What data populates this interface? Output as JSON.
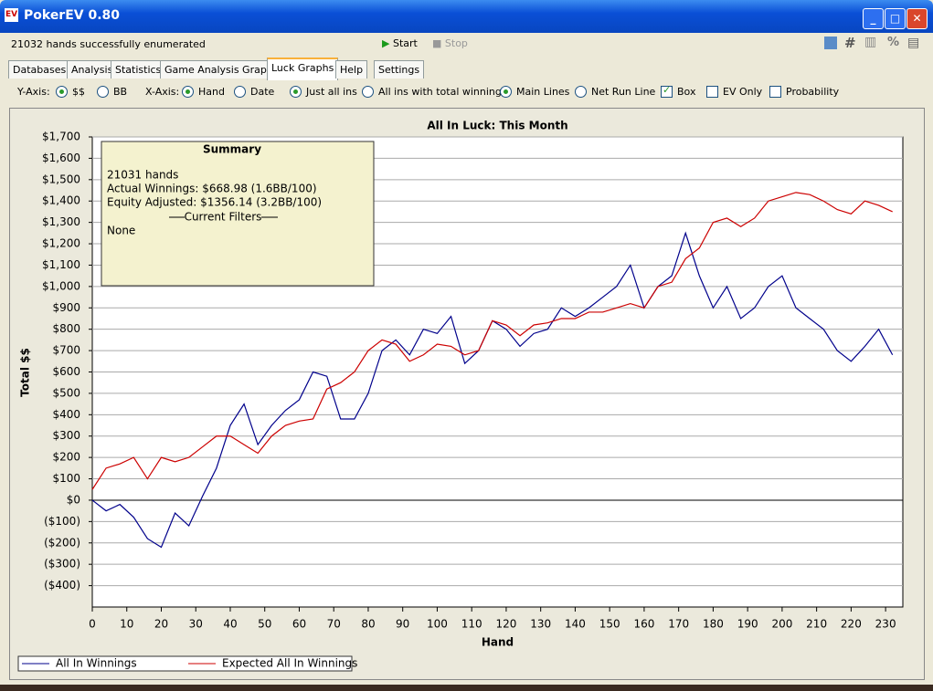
{
  "window": {
    "title": "PokerEV 0.80",
    "status": "21032 hands successfully enumerated",
    "start": "Start",
    "stop": "Stop",
    "icon": "EV",
    "percent": "%"
  },
  "tabs": [
    "Databases",
    "Analysis",
    "Statistics",
    "Game Analysis Graphs",
    "Luck Graphs",
    "Help",
    "Settings"
  ],
  "active_tab": 4,
  "options": [
    {
      "text": "Y-Axis:",
      "kind": "label"
    },
    {
      "text": "$$",
      "kind": "radio",
      "checked": true
    },
    {
      "text": "BB",
      "kind": "radio",
      "checked": false
    },
    {
      "text": "X-Axis:",
      "kind": "label"
    },
    {
      "text": "Hand",
      "kind": "radio",
      "checked": true
    },
    {
      "text": "Date",
      "kind": "radio",
      "checked": false
    },
    {
      "text": "Just all ins",
      "kind": "radio",
      "checked": true
    },
    {
      "text": "All ins with total winnings",
      "kind": "radio",
      "checked": false
    },
    {
      "text": "Main Lines",
      "kind": "radio",
      "checked": true
    },
    {
      "text": "Net Run Line",
      "kind": "radio",
      "checked": false
    },
    {
      "text": "Box",
      "kind": "check",
      "checked": true
    },
    {
      "text": "EV Only",
      "kind": "check",
      "checked": false
    },
    {
      "text": "Probability",
      "kind": "check",
      "checked": false
    }
  ],
  "summary": {
    "title": "Summary",
    "lines": [
      "21031 hands",
      "Actual Winnings: $668.98 (1.6BB/100)",
      "Equity Adjusted: $1356.14 (3.2BB/100)",
      "Current Filters",
      "None"
    ]
  },
  "chart_data": {
    "type": "line",
    "title": "All In Luck:  This Month",
    "x_label": "Hand",
    "y_label": "Total $$",
    "x": [
      0,
      4,
      8,
      12,
      16,
      20,
      24,
      28,
      32,
      36,
      40,
      44,
      48,
      52,
      56,
      60,
      64,
      68,
      72,
      76,
      80,
      84,
      88,
      92,
      96,
      100,
      104,
      108,
      112,
      116,
      120,
      124,
      128,
      132,
      136,
      140,
      144,
      148,
      152,
      156,
      160,
      164,
      168,
      172,
      176,
      180,
      184,
      188,
      192,
      196,
      200,
      204,
      208,
      212,
      216,
      220,
      224,
      228,
      232
    ],
    "series": [
      {
        "name": "All In Winnings",
        "color": "#00008b",
        "values": [
          0,
          -50,
          -20,
          -80,
          -180,
          -220,
          -60,
          -120,
          20,
          150,
          350,
          450,
          260,
          350,
          420,
          470,
          600,
          580,
          380,
          380,
          500,
          700,
          750,
          680,
          800,
          780,
          860,
          640,
          700,
          840,
          800,
          720,
          780,
          800,
          900,
          860,
          900,
          950,
          1000,
          1100,
          900,
          1000,
          1050,
          1250,
          1050,
          900,
          1000,
          850,
          900,
          1000,
          1050,
          900,
          850,
          800,
          700,
          650,
          720,
          800,
          680
        ]
      },
      {
        "name": "Expected All In Winnings",
        "color": "#cc0000",
        "values": [
          50,
          150,
          170,
          200,
          100,
          200,
          180,
          200,
          250,
          300,
          300,
          260,
          220,
          300,
          350,
          370,
          380,
          520,
          550,
          600,
          700,
          750,
          730,
          650,
          680,
          730,
          720,
          680,
          700,
          840,
          820,
          770,
          820,
          830,
          850,
          850,
          880,
          880,
          900,
          920,
          900,
          1000,
          1020,
          1130,
          1180,
          1300,
          1320,
          1280,
          1320,
          1400,
          1420,
          1440,
          1430,
          1400,
          1360,
          1340,
          1400,
          1380,
          1350
        ]
      }
    ],
    "xlim": [
      0,
      235
    ],
    "ylim": [
      -500,
      1700
    ],
    "xticks": [
      0,
      10,
      20,
      30,
      40,
      50,
      60,
      70,
      80,
      90,
      100,
      110,
      120,
      130,
      140,
      150,
      160,
      170,
      180,
      190,
      200,
      210,
      220,
      230
    ],
    "yticks": [
      {
        "value": -400,
        "label": "($400)"
      },
      {
        "value": -300,
        "label": "($300)"
      },
      {
        "value": -200,
        "label": "($200)"
      },
      {
        "value": -100,
        "label": "($100)"
      },
      {
        "value": 0,
        "label": "$0"
      },
      {
        "value": 100,
        "label": "$100"
      },
      {
        "value": 200,
        "label": "$200"
      },
      {
        "value": 300,
        "label": "$300"
      },
      {
        "value": 400,
        "label": "$400"
      },
      {
        "value": 500,
        "label": "$500"
      },
      {
        "value": 600,
        "label": "$600"
      },
      {
        "value": 700,
        "label": "$700"
      },
      {
        "value": 800,
        "label": "$800"
      },
      {
        "value": 900,
        "label": "$900"
      },
      {
        "value": 1000,
        "label": "$1,000"
      },
      {
        "value": 1100,
        "label": "$1,100"
      },
      {
        "value": 1200,
        "label": "$1,200"
      },
      {
        "value": 1300,
        "label": "$1,300"
      },
      {
        "value": 1400,
        "label": "$1,400"
      },
      {
        "value": 1500,
        "label": "$1,500"
      },
      {
        "value": 1600,
        "label": "$1,600"
      },
      {
        "value": 1700,
        "label": "$1,700"
      }
    ],
    "grid": true,
    "legend": "bottom"
  }
}
